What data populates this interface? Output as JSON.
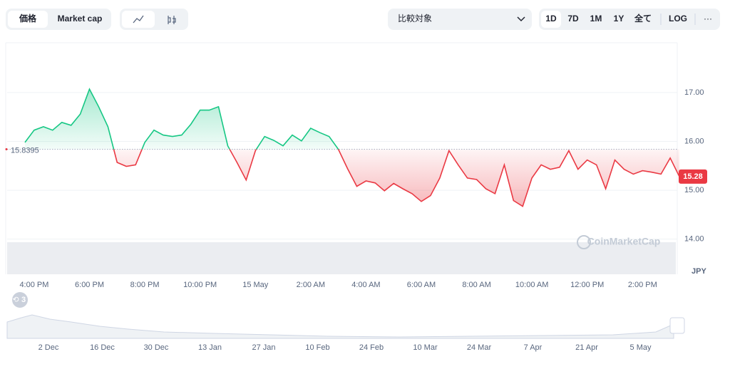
{
  "ui": {
    "tabs": [
      "価格",
      "Market cap"
    ],
    "compare": "比較対象",
    "ranges": [
      "1D",
      "7D",
      "1M",
      "1Y",
      "全て"
    ],
    "log": "LOG",
    "more": "···",
    "badge": "3",
    "watermark": "CoinMarketCap"
  },
  "chart_data": {
    "type": "line",
    "y_unit": "JPY",
    "baseline": 15.8395,
    "baseline_label": "15.8395",
    "colors": {
      "up": "#16c784",
      "down": "#ea3943"
    },
    "categories": [
      null,
      "4:00 PM",
      null,
      null,
      null,
      null,
      null,
      "6:00 PM",
      null,
      null,
      null,
      null,
      null,
      "8:00 PM",
      null,
      null,
      null,
      null,
      null,
      "10:00 PM",
      null,
      null,
      null,
      null,
      null,
      "15 May",
      null,
      null,
      null,
      null,
      null,
      "2:00 AM",
      null,
      null,
      null,
      null,
      null,
      "4:00 AM",
      null,
      null,
      null,
      null,
      null,
      "6:00 AM",
      null,
      null,
      null,
      null,
      null,
      "8:00 AM",
      null,
      null,
      null,
      null,
      null,
      "10:00 AM",
      null,
      null,
      null,
      null,
      null,
      "12:00 PM",
      null,
      null,
      null,
      null,
      null,
      "2:00 PM",
      null,
      null,
      null,
      null
    ],
    "values": [
      15.98,
      16.23,
      16.3,
      16.23,
      16.39,
      16.33,
      16.56,
      17.07,
      16.71,
      16.3,
      15.57,
      15.49,
      15.52,
      15.98,
      16.23,
      16.13,
      16.1,
      16.13,
      16.35,
      16.64,
      16.64,
      16.71,
      15.91,
      15.57,
      15.21,
      15.81,
      16.1,
      16.02,
      15.91,
      16.13,
      16.01,
      16.27,
      16.18,
      16.1,
      15.84,
      15.44,
      15.08,
      15.19,
      15.15,
      14.99,
      15.14,
      15.03,
      14.93,
      14.77,
      14.89,
      15.25,
      15.81,
      15.52,
      15.25,
      15.22,
      15.03,
      14.93,
      15.52,
      14.79,
      14.67,
      15.25,
      15.52,
      15.43,
      15.47,
      15.81,
      15.43,
      15.62,
      15.52,
      15.03,
      15.62,
      15.43,
      15.33,
      15.4,
      15.37,
      15.33,
      15.66,
      15.28
    ],
    "ylim": [
      13.28,
      18.02
    ],
    "yticks": [
      {
        "value": 14,
        "label": "14.00"
      },
      {
        "value": 15,
        "label": "15.00"
      },
      {
        "value": 16,
        "label": "16.00"
      },
      {
        "value": 17,
        "label": "17.00"
      }
    ],
    "grid": true,
    "navigator_labels": [
      "2 Dec",
      "16 Dec",
      "30 Dec",
      "13 Jan",
      "27 Jan",
      "10 Feb",
      "24 Feb",
      "10 Mar",
      "24 Mar",
      "7 Apr",
      "21 Apr",
      "5 May"
    ]
  }
}
